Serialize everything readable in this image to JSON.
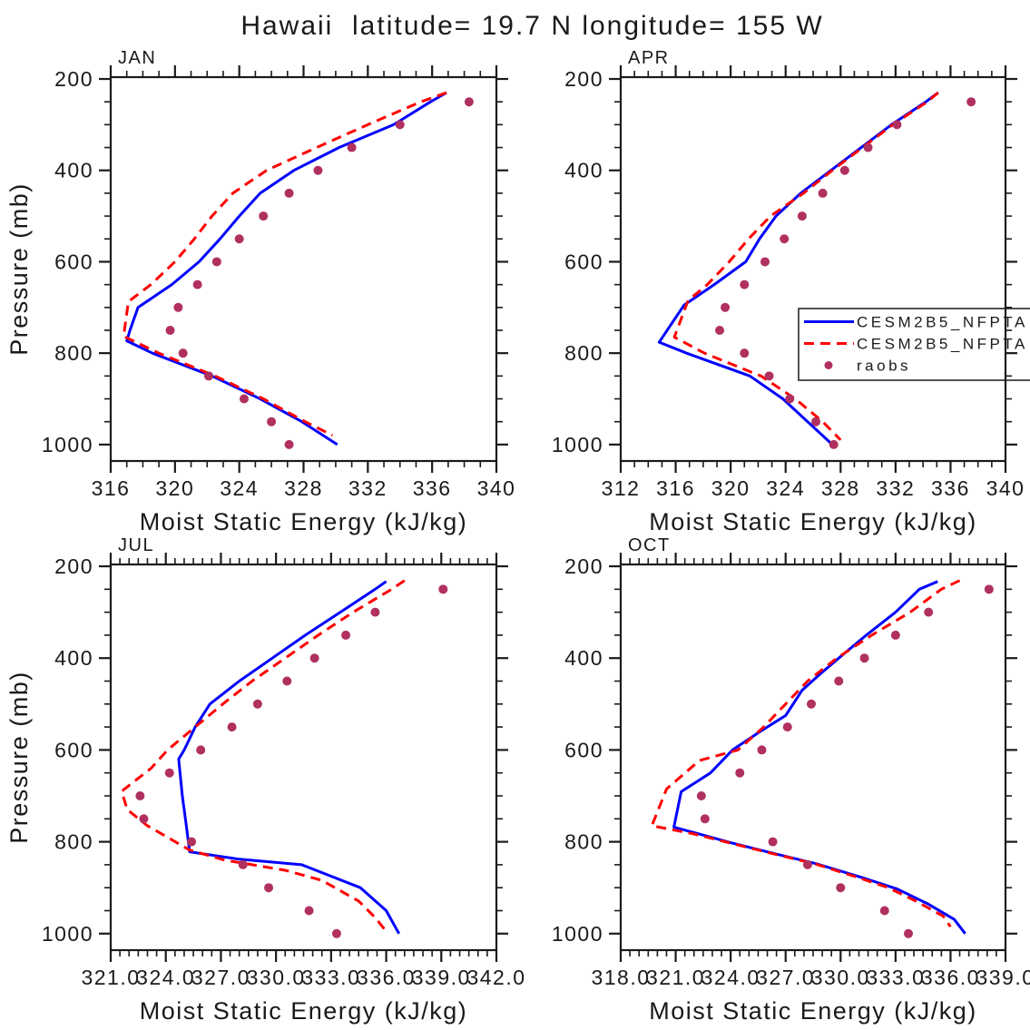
{
  "title": "Hawaii  latitude= 19.7 N longitude= 155 W",
  "colors": {
    "model_solid": "#0000ff",
    "model_dashed": "#ff0000",
    "raobs": "#b03060",
    "text": "#1a1a1a",
    "axis": "#1a1a1a"
  },
  "legend": {
    "entries": [
      {
        "label": "CESM2B5_NFPTA",
        "style": "solid"
      },
      {
        "label": "CESM2B5_NFPTA",
        "style": "dashed"
      },
      {
        "label": "raobs",
        "style": "dot"
      }
    ]
  },
  "chart_data": [
    {
      "type": "line",
      "month": "JAN",
      "xlabel": "Moist Static Energy (kJ/kg)",
      "ylabel": "Pressure (mb)",
      "xlim": [
        316,
        340
      ],
      "xticks": [
        316,
        320,
        324,
        328,
        332,
        336,
        340
      ],
      "xtick_labels": [
        "316",
        "320",
        "324",
        "328",
        "332",
        "336",
        "340"
      ],
      "xminor_per_major": 4,
      "ylim": [
        196,
        1036
      ],
      "yticks": [
        200,
        400,
        600,
        800,
        1000
      ],
      "ytick_labels": [
        "200",
        "400",
        "600",
        "800",
        "1000"
      ],
      "yminor_step": 50,
      "show_legend": false,
      "series": [
        {
          "name": "CESM2B5_NFPTA",
          "style": "solid",
          "points": [
            [
              336.9,
              230
            ],
            [
              335.9,
              250
            ],
            [
              333.6,
              300
            ],
            [
              330.2,
              350
            ],
            [
              327.4,
              400
            ],
            [
              325.3,
              450
            ],
            [
              324.0,
              500
            ],
            [
              322.8,
              550
            ],
            [
              321.5,
              600
            ],
            [
              319.8,
              650
            ],
            [
              317.7,
              700
            ],
            [
              317.2,
              750
            ],
            [
              317.0,
              773
            ],
            [
              318.6,
              800
            ],
            [
              322.3,
              850
            ],
            [
              325.3,
              900
            ],
            [
              327.9,
              950
            ],
            [
              330.1,
              1000
            ]
          ]
        },
        {
          "name": "CESM2B5_NFPTA",
          "style": "dashed",
          "points": [
            [
              336.9,
              230
            ],
            [
              335.3,
              250
            ],
            [
              332.0,
              300
            ],
            [
              328.8,
              350
            ],
            [
              325.7,
              400
            ],
            [
              323.6,
              450
            ],
            [
              322.3,
              500
            ],
            [
              321.2,
              550
            ],
            [
              320.0,
              600
            ],
            [
              318.5,
              650
            ],
            [
              317.1,
              687
            ],
            [
              316.8,
              763
            ],
            [
              319.0,
              800
            ],
            [
              322.5,
              850
            ],
            [
              325.5,
              900
            ],
            [
              328.1,
              950
            ],
            [
              329.8,
              980
            ]
          ]
        },
        {
          "name": "raobs",
          "style": "dots",
          "points": [
            [
              338.3,
              250
            ],
            [
              334.0,
              300
            ],
            [
              331.0,
              350
            ],
            [
              328.9,
              400
            ],
            [
              327.1,
              450
            ],
            [
              325.5,
              500
            ],
            [
              324.0,
              550
            ],
            [
              322.6,
              600
            ],
            [
              321.4,
              650
            ],
            [
              320.2,
              700
            ],
            [
              319.7,
              750
            ],
            [
              320.5,
              800
            ],
            [
              322.1,
              850
            ],
            [
              324.3,
              900
            ],
            [
              326.0,
              950
            ],
            [
              327.1,
              1000
            ]
          ]
        }
      ]
    },
    {
      "type": "line",
      "month": "APR",
      "xlabel": "Moist Static Energy (kJ/kg)",
      "xlim": [
        312,
        340
      ],
      "xticks": [
        312,
        316,
        320,
        324,
        328,
        332,
        336,
        340
      ],
      "xtick_labels": [
        "312",
        "316",
        "320",
        "324",
        "328",
        "332",
        "336",
        "340"
      ],
      "xminor_per_major": 4,
      "ylim": [
        196,
        1036
      ],
      "yticks": [
        200,
        400,
        600,
        800,
        1000
      ],
      "ytick_labels": [
        "200",
        "400",
        "600",
        "800",
        "1000"
      ],
      "yminor_step": 50,
      "show_legend": true,
      "series": [
        {
          "name": "CESM2B5_NFPTA",
          "style": "solid",
          "points": [
            [
              335.1,
              230
            ],
            [
              334.2,
              250
            ],
            [
              331.7,
              300
            ],
            [
              329.5,
              350
            ],
            [
              327.3,
              400
            ],
            [
              325.1,
              450
            ],
            [
              323.3,
              500
            ],
            [
              322.1,
              550
            ],
            [
              321.1,
              600
            ],
            [
              318.8,
              650
            ],
            [
              316.6,
              695
            ],
            [
              314.8,
              776
            ],
            [
              316.8,
              800
            ],
            [
              321.4,
              850
            ],
            [
              323.8,
              900
            ],
            [
              325.6,
              950
            ],
            [
              327.4,
              1000
            ]
          ]
        },
        {
          "name": "CESM2B5_NFPTA",
          "style": "dashed",
          "points": [
            [
              335.1,
              230
            ],
            [
              334.3,
              250
            ],
            [
              331.8,
              300
            ],
            [
              329.6,
              350
            ],
            [
              327.4,
              400
            ],
            [
              325.3,
              450
            ],
            [
              322.9,
              500
            ],
            [
              321.3,
              550
            ],
            [
              319.9,
              600
            ],
            [
              318.3,
              650
            ],
            [
              316.9,
              685
            ],
            [
              315.9,
              765
            ],
            [
              318.1,
              800
            ],
            [
              322.2,
              850
            ],
            [
              324.7,
              900
            ],
            [
              326.7,
              950
            ],
            [
              328.0,
              990
            ]
          ]
        },
        {
          "name": "raobs",
          "style": "dots",
          "points": [
            [
              337.5,
              250
            ],
            [
              332.1,
              300
            ],
            [
              330.0,
              350
            ],
            [
              328.3,
              400
            ],
            [
              326.7,
              450
            ],
            [
              325.2,
              500
            ],
            [
              323.9,
              550
            ],
            [
              322.5,
              600
            ],
            [
              321.0,
              650
            ],
            [
              319.6,
              700
            ],
            [
              319.2,
              750
            ],
            [
              321.0,
              800
            ],
            [
              322.8,
              850
            ],
            [
              324.3,
              900
            ],
            [
              326.2,
              950
            ],
            [
              327.5,
              1000
            ]
          ]
        }
      ]
    },
    {
      "type": "line",
      "month": "JUL",
      "xlabel": "Moist Static Energy (kJ/kg)",
      "ylabel": "Pressure (mb)",
      "xlim": [
        321,
        342
      ],
      "xticks": [
        321,
        324,
        327,
        330,
        333,
        336,
        339,
        342
      ],
      "xtick_labels": [
        "321.0",
        "324.0",
        "327.0",
        "330.0",
        "333.0",
        "336.0",
        "339.0",
        "342.0"
      ],
      "xminor_per_major": 6,
      "ylim": [
        196,
        1036
      ],
      "yticks": [
        200,
        400,
        600,
        800,
        1000
      ],
      "ytick_labels": [
        "200",
        "400",
        "600",
        "800",
        "1000"
      ],
      "yminor_step": 50,
      "show_legend": false,
      "series": [
        {
          "name": "CESM2B5_NFPTA",
          "style": "solid",
          "points": [
            [
              336.0,
              233
            ],
            [
              335.4,
              250
            ],
            [
              333.5,
              300
            ],
            [
              331.6,
              350
            ],
            [
              329.8,
              400
            ],
            [
              328.0,
              450
            ],
            [
              326.4,
              500
            ],
            [
              325.6,
              550
            ],
            [
              325.0,
              600
            ],
            [
              324.7,
              620
            ],
            [
              324.9,
              700
            ],
            [
              325.1,
              760
            ],
            [
              325.3,
              822
            ],
            [
              328.0,
              838
            ],
            [
              331.4,
              850
            ],
            [
              334.6,
              900
            ],
            [
              336.0,
              950
            ],
            [
              336.7,
              1000
            ]
          ]
        },
        {
          "name": "CESM2B5_NFPTA",
          "style": "dashed",
          "points": [
            [
              337.0,
              231
            ],
            [
              336.3,
              250
            ],
            [
              334.2,
              300
            ],
            [
              332.3,
              350
            ],
            [
              330.5,
              400
            ],
            [
              328.7,
              450
            ],
            [
              327.1,
              500
            ],
            [
              325.6,
              550
            ],
            [
              324.1,
              600
            ],
            [
              323.2,
              640
            ],
            [
              321.6,
              690
            ],
            [
              321.9,
              730
            ],
            [
              323.0,
              765
            ],
            [
              325.3,
              818
            ],
            [
              327.2,
              840
            ],
            [
              330.5,
              862
            ],
            [
              332.5,
              884
            ],
            [
              334.5,
              929
            ],
            [
              335.4,
              965
            ],
            [
              335.9,
              990
            ]
          ]
        },
        {
          "name": "raobs",
          "style": "dots",
          "points": [
            [
              339.1,
              250
            ],
            [
              335.4,
              300
            ],
            [
              333.8,
              350
            ],
            [
              332.1,
              400
            ],
            [
              330.6,
              450
            ],
            [
              329.0,
              500
            ],
            [
              327.6,
              550
            ],
            [
              325.9,
              600
            ],
            [
              324.2,
              650
            ],
            [
              322.6,
              700
            ],
            [
              322.8,
              750
            ],
            [
              325.4,
              800
            ],
            [
              328.2,
              850
            ],
            [
              329.6,
              900
            ],
            [
              331.8,
              950
            ],
            [
              333.3,
              1000
            ]
          ]
        }
      ]
    },
    {
      "type": "line",
      "month": "OCT",
      "xlabel": "Moist Static Energy (kJ/kg)",
      "xlim": [
        318,
        339
      ],
      "xticks": [
        318,
        321,
        324,
        327,
        330,
        333,
        336,
        339
      ],
      "xtick_labels": [
        "318.0",
        "321.0",
        "324.0",
        "327.0",
        "330.0",
        "333.0",
        "336.0",
        "339.0"
      ],
      "xminor_per_major": 6,
      "ylim": [
        196,
        1036
      ],
      "yticks": [
        200,
        400,
        600,
        800,
        1000
      ],
      "ytick_labels": [
        "200",
        "400",
        "600",
        "800",
        "1000"
      ],
      "yminor_step": 50,
      "show_legend": false,
      "series": [
        {
          "name": "CESM2B5_NFPTA",
          "style": "solid",
          "points": [
            [
              335.3,
              233
            ],
            [
              334.3,
              250
            ],
            [
              333.0,
              300
            ],
            [
              331.4,
              350
            ],
            [
              329.9,
              400
            ],
            [
              328.9,
              434
            ],
            [
              327.9,
              470
            ],
            [
              327.0,
              525
            ],
            [
              325.6,
              560
            ],
            [
              324.1,
              600
            ],
            [
              322.9,
              650
            ],
            [
              321.3,
              691
            ],
            [
              320.9,
              768
            ],
            [
              324.0,
              802
            ],
            [
              326.3,
              825
            ],
            [
              328.7,
              848
            ],
            [
              331.1,
              877
            ],
            [
              333.1,
              903
            ],
            [
              334.8,
              936
            ],
            [
              336.2,
              969
            ],
            [
              336.8,
              1000
            ]
          ]
        },
        {
          "name": "CESM2B5_NFPTA",
          "style": "dashed",
          "points": [
            [
              336.5,
              231
            ],
            [
              335.5,
              250
            ],
            [
              333.8,
              300
            ],
            [
              331.7,
              350
            ],
            [
              329.8,
              400
            ],
            [
              328.2,
              450
            ],
            [
              327.0,
              500
            ],
            [
              325.8,
              550
            ],
            [
              324.4,
              600
            ],
            [
              322.3,
              623
            ],
            [
              320.5,
              685
            ],
            [
              319.7,
              765
            ],
            [
              322.0,
              783
            ],
            [
              326.2,
              825
            ],
            [
              328.6,
              848
            ],
            [
              330.9,
              877
            ],
            [
              332.6,
              900
            ],
            [
              334.1,
              929
            ],
            [
              335.6,
              962
            ],
            [
              336.0,
              985
            ]
          ]
        },
        {
          "name": "raobs",
          "style": "dots",
          "points": [
            [
              338.1,
              250
            ],
            [
              334.8,
              300
            ],
            [
              333.0,
              350
            ],
            [
              331.3,
              400
            ],
            [
              329.9,
              450
            ],
            [
              328.4,
              500
            ],
            [
              327.1,
              550
            ],
            [
              325.7,
              600
            ],
            [
              324.5,
              650
            ],
            [
              322.4,
              700
            ],
            [
              322.6,
              750
            ],
            [
              326.3,
              800
            ],
            [
              328.2,
              850
            ],
            [
              330.0,
              900
            ],
            [
              332.4,
              950
            ],
            [
              333.7,
              1000
            ]
          ]
        }
      ]
    }
  ]
}
